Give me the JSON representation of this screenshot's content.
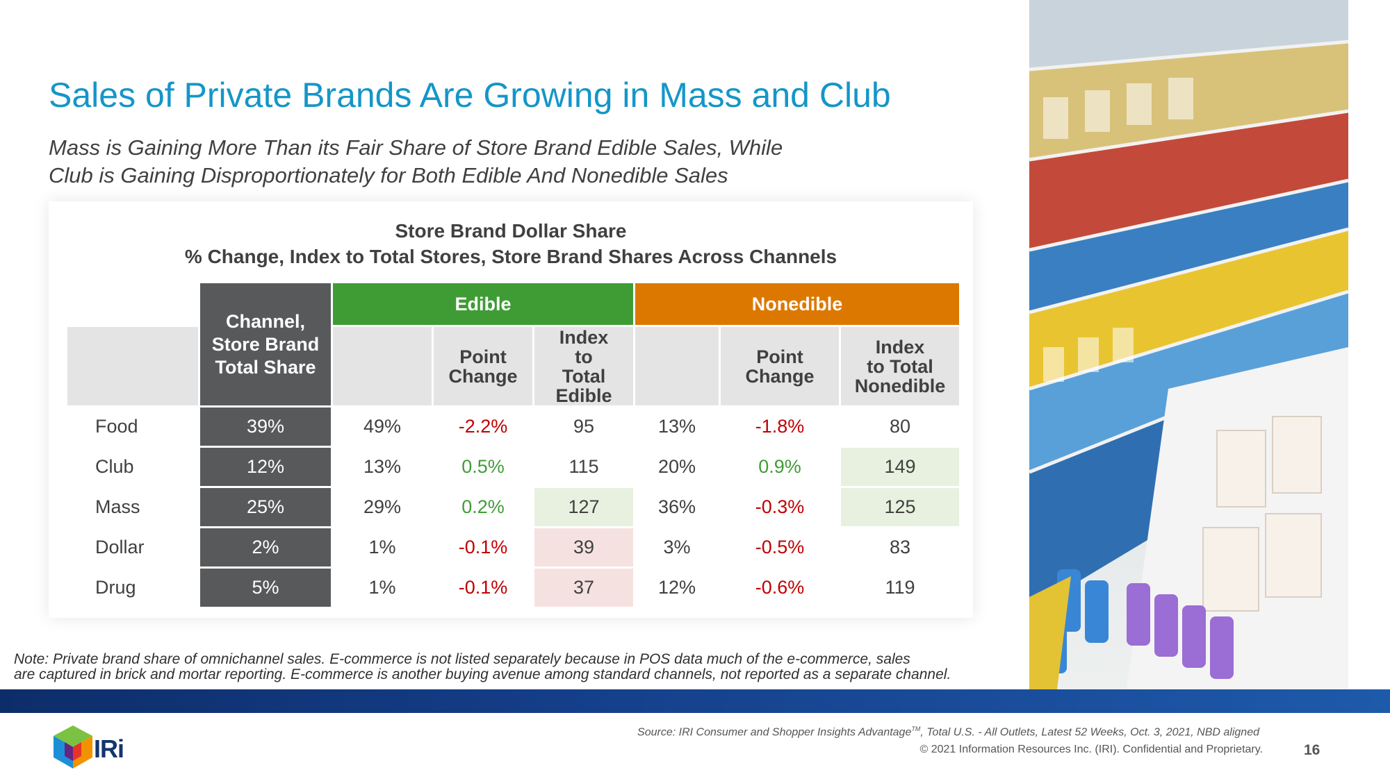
{
  "title": "Sales of Private Brands Are Growing in Mass and Club",
  "subtitle": {
    "line1": "Mass is Gaining More Than its Fair Share of Store Brand Edible Sales, While",
    "line2": "Club is Gaining Disproportionately for Both Edible And Nonedible Sales"
  },
  "table": {
    "title1": "Store Brand Dollar Share",
    "title2": "% Change, Index to Total Stores, Store Brand Shares Across Channels",
    "group_edible": "Edible",
    "group_nonedible": "Nonedible",
    "col_channel_line1": "Channel,",
    "col_channel_line2": "Store Brand",
    "col_channel_line3": "Total Share",
    "col_point_change_line1": "Point",
    "col_point_change_line2": "Change",
    "col_index_edible_line1": "Index",
    "col_index_edible_line2": "to",
    "col_index_edible_line3": "Total",
    "col_index_edible_line4": "Edible",
    "col_index_nonedible_line1": "Index",
    "col_index_nonedible_line2": "to Total",
    "col_index_nonedible_line3": "Nonedible",
    "rows": [
      {
        "label": "Food",
        "total": "39%",
        "edible_share": "49%",
        "edible_pt": "-2.2%",
        "edible_idx": "95",
        "nonedible_share": "13%",
        "nonedible_pt": "-1.8%",
        "nonedible_idx": "80"
      },
      {
        "label": "Club",
        "total": "12%",
        "edible_share": "13%",
        "edible_pt": "0.5%",
        "edible_idx": "115",
        "nonedible_share": "20%",
        "nonedible_pt": "0.9%",
        "nonedible_idx": "149"
      },
      {
        "label": "Mass",
        "total": "25%",
        "edible_share": "29%",
        "edible_pt": "0.2%",
        "edible_idx": "127",
        "nonedible_share": "36%",
        "nonedible_pt": "-0.3%",
        "nonedible_idx": "125"
      },
      {
        "label": "Dollar",
        "total": "2%",
        "edible_share": "1%",
        "edible_pt": "-0.1%",
        "edible_idx": "39",
        "nonedible_share": "3%",
        "nonedible_pt": "-0.5%",
        "nonedible_idx": "83"
      },
      {
        "label": "Drug",
        "total": "5%",
        "edible_share": "1%",
        "edible_pt": "-0.1%",
        "edible_idx": "37",
        "nonedible_share": "12%",
        "nonedible_pt": "-0.6%",
        "nonedible_idx": "119"
      }
    ]
  },
  "note": {
    "line1": "Note: Private brand share of omnichannel sales. E-commerce is not listed separately because in POS data much of the e-commerce, sales",
    "line2": "are captured in brick and mortar reporting. E-commerce is another buying avenue among standard channels, not reported as a separate channel."
  },
  "footer": {
    "logo_text": "IRi",
    "source_a": "Source: IRI Consumer and Shopper Insights Advantage",
    "source_tm": "TM",
    "source_b": ", Total U.S. - All Outlets, Latest 52 Weeks, Oct. 3, 2021, NBD aligned",
    "copyright": "© 2021 Information Resources Inc. (IRI). Confidential and Proprietary.",
    "page_number": "16"
  },
  "colors": {
    "title_blue": "#1496c8",
    "edible_green": "#3f9c35",
    "nonedible_orange": "#dc7800",
    "dark_gray": "#58595b",
    "negative_red": "#c00000",
    "band_navy": "#13356f"
  }
}
